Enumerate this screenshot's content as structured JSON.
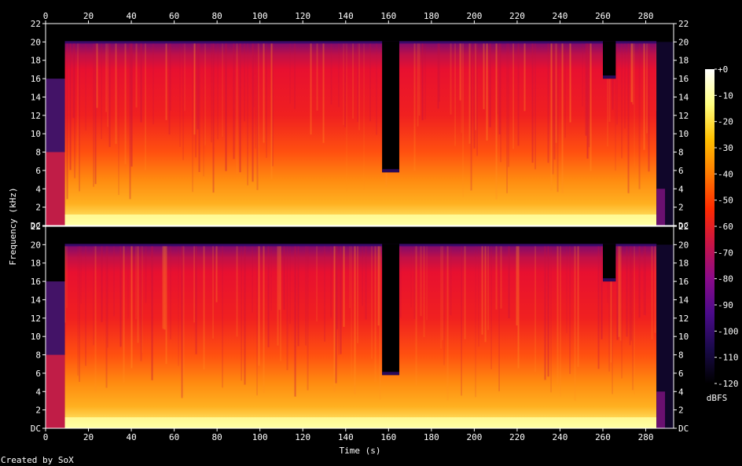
{
  "chart_data": {
    "type": "heatmap",
    "xlabel": "Time (s)",
    "ylabel": "Frequency (kHz)",
    "xlim": [
      0,
      293
    ],
    "x_ticks": [
      0,
      20,
      40,
      60,
      80,
      100,
      120,
      140,
      160,
      180,
      200,
      220,
      240,
      260,
      280
    ],
    "channels": [
      {
        "y_ticks": [
          {
            "value": 0,
            "label": "DC"
          },
          {
            "value": 2,
            "label": "2"
          },
          {
            "value": 4,
            "label": "4"
          },
          {
            "value": 6,
            "label": "6"
          },
          {
            "value": 8,
            "label": "8"
          },
          {
            "value": 10,
            "label": "10"
          },
          {
            "value": 12,
            "label": "12"
          },
          {
            "value": 14,
            "label": "14"
          },
          {
            "value": 16,
            "label": "16"
          },
          {
            "value": 18,
            "label": "18"
          },
          {
            "value": 20,
            "label": "20"
          },
          {
            "value": 22,
            "label": "22"
          }
        ]
      },
      {
        "y_ticks": [
          {
            "value": 0,
            "label": "DC"
          },
          {
            "value": 2,
            "label": "2"
          },
          {
            "value": 4,
            "label": "4"
          },
          {
            "value": 6,
            "label": "6"
          },
          {
            "value": 8,
            "label": "8"
          },
          {
            "value": 10,
            "label": "10"
          },
          {
            "value": 12,
            "label": "12"
          },
          {
            "value": 14,
            "label": "14"
          },
          {
            "value": 16,
            "label": "16"
          },
          {
            "value": 18,
            "label": "18"
          },
          {
            "value": 20,
            "label": "20"
          },
          {
            "value": 22,
            "label": "22"
          }
        ]
      }
    ],
    "ylim": [
      0,
      22
    ],
    "colorbar": {
      "label": "dBFS",
      "range": [
        -120,
        0
      ],
      "ticks": [
        {
          "value": 0,
          "label": "+0"
        },
        {
          "value": -10,
          "label": "-10"
        },
        {
          "value": -20,
          "label": "-20"
        },
        {
          "value": -30,
          "label": "-30"
        },
        {
          "value": -40,
          "label": "-40"
        },
        {
          "value": -50,
          "label": "-50"
        },
        {
          "value": -60,
          "label": "-60"
        },
        {
          "value": -70,
          "label": "-70"
        },
        {
          "value": -80,
          "label": "-80"
        },
        {
          "value": -90,
          "label": "-90"
        },
        {
          "value": -100,
          "label": "-100"
        },
        {
          "value": -110,
          "label": "-110"
        },
        {
          "value": -120,
          "label": "-120"
        }
      ],
      "colors": [
        "#000000",
        "#1a0a4a",
        "#4a0a8a",
        "#8a0a8a",
        "#c81446",
        "#ff2a00",
        "#ff7a00",
        "#ffc000",
        "#ffff80",
        "#ffffff"
      ]
    },
    "content_extent_s": [
      9,
      285
    ],
    "lowpass_cutoff_khz": 20,
    "dips": [
      {
        "start_s": 157,
        "end_s": 165,
        "cutoff_khz": 5.8
      },
      {
        "start_s": 260,
        "end_s": 266,
        "cutoff_khz": 16
      }
    ]
  },
  "footer": {
    "credit": "Created by SoX"
  }
}
